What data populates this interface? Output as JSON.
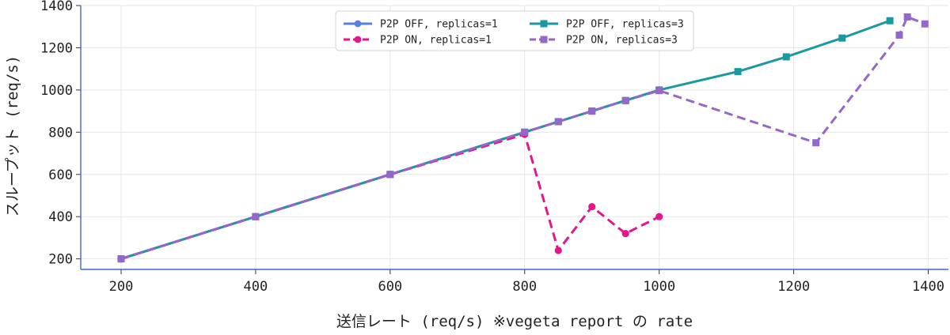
{
  "chart_data": {
    "type": "line",
    "title": "",
    "xlabel": "送信レート (req/s) ※vegeta report の rate",
    "ylabel": "スループット (req/s)",
    "xlim": [
      140,
      1430
    ],
    "ylim": [
      150,
      1400
    ],
    "xticks": [
      200,
      400,
      600,
      800,
      1000,
      1200,
      1400
    ],
    "yticks": [
      200,
      400,
      600,
      800,
      1000,
      1200,
      1400
    ],
    "grid": true,
    "legend": "top-center",
    "series": [
      {
        "name": "P2P OFF, replicas=1",
        "color": "#5b7fe0",
        "marker": "circle",
        "dash": "solid",
        "points": [
          [
            200,
            200
          ],
          [
            400,
            400
          ],
          [
            600,
            600
          ],
          [
            800,
            800
          ],
          [
            850,
            850
          ],
          [
            900,
            900
          ],
          [
            950,
            950
          ],
          [
            1000,
            1000
          ]
        ]
      },
      {
        "name": "P2P ON, replicas=1",
        "color": "#e3168c",
        "marker": "circle",
        "dash": "dashed",
        "points": [
          [
            200,
            200
          ],
          [
            400,
            400
          ],
          [
            600,
            600
          ],
          [
            800,
            790
          ],
          [
            850,
            240
          ],
          [
            900,
            447
          ],
          [
            950,
            320
          ],
          [
            1000,
            400
          ]
        ]
      },
      {
        "name": "P2P OFF, replicas=3",
        "color": "#1a9aa0",
        "marker": "square",
        "dash": "solid",
        "points": [
          [
            200,
            200
          ],
          [
            400,
            400
          ],
          [
            600,
            600
          ],
          [
            800,
            800
          ],
          [
            850,
            850
          ],
          [
            900,
            900
          ],
          [
            950,
            950
          ],
          [
            1000,
            1000
          ],
          [
            1117,
            1087
          ],
          [
            1189,
            1157
          ],
          [
            1272,
            1246
          ],
          [
            1343,
            1328
          ]
        ]
      },
      {
        "name": "P2P ON, replicas=3",
        "color": "#9467c9",
        "marker": "square",
        "dash": "dashed",
        "points": [
          [
            200,
            200
          ],
          [
            400,
            400
          ],
          [
            600,
            600
          ],
          [
            800,
            800
          ],
          [
            850,
            850
          ],
          [
            900,
            900
          ],
          [
            950,
            950
          ],
          [
            1000,
            997
          ],
          [
            1233,
            750
          ],
          [
            1357,
            1260
          ],
          [
            1369,
            1346
          ],
          [
            1395,
            1313
          ]
        ]
      }
    ]
  }
}
